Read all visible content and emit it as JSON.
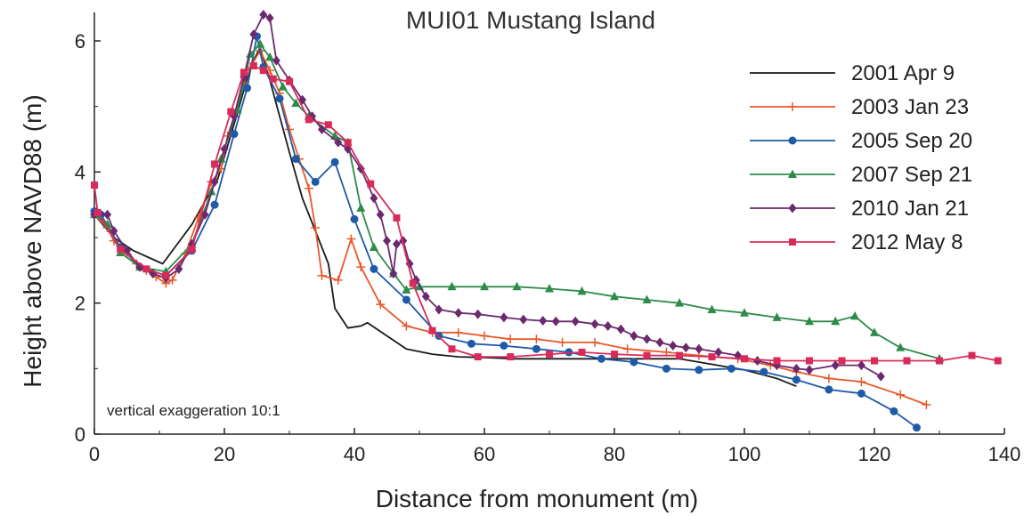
{
  "chart_data": {
    "type": "line",
    "title": "MUI01 Mustang Island",
    "xlabel": "Distance from monument (m)",
    "ylabel": "Height above NAVD88 (m)",
    "annotation": "vertical exaggeration 10:1",
    "xlim": [
      0,
      140
    ],
    "ylim": [
      0,
      6.4
    ],
    "x_ticks": [
      0,
      20,
      40,
      60,
      80,
      100,
      120,
      140
    ],
    "y_ticks": [
      0,
      2,
      4,
      6
    ],
    "grid": false,
    "legend_position": "top-right",
    "series": [
      {
        "name": "2001 Apr 9",
        "color": "#1a1a1a",
        "marker": "none",
        "points": [
          [
            0,
            3.35
          ],
          [
            3,
            3.0
          ],
          [
            6,
            2.8
          ],
          [
            10.5,
            2.6
          ],
          [
            15,
            3.2
          ],
          [
            19,
            3.9
          ],
          [
            22,
            4.9
          ],
          [
            24,
            5.6
          ],
          [
            25.5,
            5.9
          ],
          [
            27,
            5.4
          ],
          [
            30,
            4.3
          ],
          [
            32,
            3.6
          ],
          [
            34,
            3.1
          ],
          [
            36,
            2.6
          ],
          [
            37,
            1.92
          ],
          [
            39,
            1.62
          ],
          [
            41,
            1.65
          ],
          [
            42,
            1.7
          ],
          [
            45,
            1.5
          ],
          [
            48,
            1.3
          ],
          [
            52,
            1.22
          ],
          [
            56,
            1.18
          ],
          [
            60,
            1.17
          ],
          [
            65,
            1.15
          ],
          [
            70,
            1.15
          ],
          [
            80,
            1.15
          ],
          [
            90,
            1.15
          ],
          [
            100,
            0.98
          ],
          [
            105,
            0.85
          ],
          [
            108,
            0.73
          ]
        ]
      },
      {
        "name": "2003 Jan 23",
        "color": "#e8582a",
        "marker": "plus",
        "points": [
          [
            0,
            3.35
          ],
          [
            2,
            3.15
          ],
          [
            3,
            2.95
          ],
          [
            5,
            2.75
          ],
          [
            6.5,
            2.6
          ],
          [
            8,
            2.5
          ],
          [
            9.5,
            2.4
          ],
          [
            11,
            2.3
          ],
          [
            12,
            2.35
          ],
          [
            14,
            2.75
          ],
          [
            16,
            3.3
          ],
          [
            18,
            3.85
          ],
          [
            19.5,
            4.05
          ],
          [
            20.5,
            4.55
          ],
          [
            21.5,
            4.85
          ],
          [
            23,
            5.35
          ],
          [
            24,
            5.6
          ],
          [
            25.5,
            5.85
          ],
          [
            27,
            5.55
          ],
          [
            28.5,
            5.2
          ],
          [
            30,
            4.65
          ],
          [
            31.5,
            4.2
          ],
          [
            33,
            3.75
          ],
          [
            34,
            3.15
          ],
          [
            35,
            2.42
          ],
          [
            37.5,
            2.35
          ],
          [
            39.5,
            2.98
          ],
          [
            41,
            2.55
          ],
          [
            44,
            1.98
          ],
          [
            48,
            1.65
          ],
          [
            52,
            1.55
          ],
          [
            56,
            1.55
          ],
          [
            60,
            1.5
          ],
          [
            64,
            1.45
          ],
          [
            68,
            1.45
          ],
          [
            72,
            1.4
          ],
          [
            77,
            1.4
          ],
          [
            82,
            1.3
          ],
          [
            88,
            1.25
          ],
          [
            93,
            1.2
          ],
          [
            99,
            1.15
          ],
          [
            104,
            1.05
          ],
          [
            108,
            0.95
          ],
          [
            113,
            0.85
          ],
          [
            118,
            0.8
          ],
          [
            124,
            0.6
          ],
          [
            128,
            0.45
          ]
        ]
      },
      {
        "name": "2005 Sep 20",
        "color": "#1f5aa8",
        "marker": "circle",
        "points": [
          [
            0,
            3.4
          ],
          [
            1,
            3.35
          ],
          [
            4,
            2.85
          ],
          [
            7,
            2.55
          ],
          [
            11,
            2.42
          ],
          [
            15,
            2.8
          ],
          [
            18.5,
            3.5
          ],
          [
            21.5,
            4.58
          ],
          [
            23.5,
            5.28
          ],
          [
            25,
            6.07
          ],
          [
            26,
            5.6
          ],
          [
            28.5,
            5.12
          ],
          [
            31,
            4.2
          ],
          [
            34,
            3.85
          ],
          [
            37,
            4.15
          ],
          [
            40,
            3.28
          ],
          [
            43,
            2.52
          ],
          [
            48,
            2.05
          ],
          [
            53,
            1.5
          ],
          [
            58,
            1.38
          ],
          [
            63,
            1.35
          ],
          [
            68,
            1.3
          ],
          [
            73,
            1.25
          ],
          [
            78,
            1.15
          ],
          [
            83,
            1.1
          ],
          [
            88,
            1.0
          ],
          [
            93,
            0.98
          ],
          [
            98,
            1.0
          ],
          [
            103,
            0.95
          ],
          [
            108,
            0.83
          ],
          [
            113,
            0.68
          ],
          [
            118,
            0.62
          ],
          [
            123,
            0.35
          ],
          [
            126.5,
            0.1
          ]
        ]
      },
      {
        "name": "2007 Sep 21",
        "color": "#2e8b4a",
        "marker": "triangle",
        "points": [
          [
            0,
            3.35
          ],
          [
            2,
            3.2
          ],
          [
            4,
            2.77
          ],
          [
            7,
            2.55
          ],
          [
            11,
            2.48
          ],
          [
            15,
            2.9
          ],
          [
            18,
            3.7
          ],
          [
            19.5,
            4.2
          ],
          [
            22,
            4.95
          ],
          [
            24,
            5.8
          ],
          [
            25.5,
            5.95
          ],
          [
            27,
            5.75
          ],
          [
            29,
            5.3
          ],
          [
            31,
            5.05
          ],
          [
            33,
            4.85
          ],
          [
            37,
            4.55
          ],
          [
            39,
            4.45
          ],
          [
            41,
            3.45
          ],
          [
            43,
            2.85
          ],
          [
            46,
            2.45
          ],
          [
            48,
            2.2
          ],
          [
            50,
            2.25
          ],
          [
            55,
            2.25
          ],
          [
            60,
            2.25
          ],
          [
            65,
            2.25
          ],
          [
            70,
            2.22
          ],
          [
            75,
            2.18
          ],
          [
            80,
            2.1
          ],
          [
            85,
            2.05
          ],
          [
            90,
            2.0
          ],
          [
            95,
            1.9
          ],
          [
            100,
            1.85
          ],
          [
            105,
            1.78
          ],
          [
            110,
            1.72
          ],
          [
            114,
            1.72
          ],
          [
            117,
            1.8
          ],
          [
            120,
            1.55
          ],
          [
            124,
            1.32
          ],
          [
            130,
            1.15
          ]
        ]
      },
      {
        "name": "2010 Jan 21",
        "color": "#6b2a6e",
        "marker": "diamond",
        "points": [
          [
            0,
            3.35
          ],
          [
            2,
            3.35
          ],
          [
            3,
            3.1
          ],
          [
            5,
            2.8
          ],
          [
            7,
            2.55
          ],
          [
            9,
            2.45
          ],
          [
            11,
            2.38
          ],
          [
            13,
            2.52
          ],
          [
            15,
            2.9
          ],
          [
            17,
            3.35
          ],
          [
            18.5,
            3.85
          ],
          [
            20,
            4.35
          ],
          [
            21.5,
            4.85
          ],
          [
            23,
            5.45
          ],
          [
            24.5,
            6.1
          ],
          [
            26,
            6.4
          ],
          [
            27,
            6.35
          ],
          [
            28,
            5.7
          ],
          [
            30,
            5.4
          ],
          [
            32,
            5.1
          ],
          [
            33.5,
            4.85
          ],
          [
            35,
            4.65
          ],
          [
            37.5,
            4.45
          ],
          [
            39,
            4.35
          ],
          [
            41,
            4.05
          ],
          [
            43,
            3.6
          ],
          [
            44,
            3.35
          ],
          [
            45,
            2.95
          ],
          [
            46,
            2.45
          ],
          [
            46.5,
            2.9
          ],
          [
            47.5,
            2.95
          ],
          [
            48.5,
            2.6
          ],
          [
            49.5,
            2.35
          ],
          [
            51,
            2.1
          ],
          [
            53,
            1.9
          ],
          [
            56,
            1.85
          ],
          [
            59,
            1.83
          ],
          [
            63,
            1.78
          ],
          [
            66,
            1.75
          ],
          [
            69,
            1.73
          ],
          [
            71,
            1.72
          ],
          [
            74,
            1.72
          ],
          [
            77,
            1.68
          ],
          [
            79,
            1.65
          ],
          [
            81,
            1.6
          ],
          [
            83,
            1.5
          ],
          [
            85,
            1.45
          ],
          [
            87,
            1.4
          ],
          [
            89,
            1.35
          ],
          [
            91,
            1.32
          ],
          [
            93,
            1.3
          ],
          [
            96,
            1.25
          ],
          [
            99,
            1.2
          ],
          [
            102,
            1.12
          ],
          [
            105,
            1.05
          ],
          [
            108,
            1.0
          ],
          [
            110,
            0.98
          ],
          [
            114,
            1.05
          ],
          [
            118,
            1.05
          ],
          [
            121,
            0.88
          ]
        ]
      },
      {
        "name": "2012 May 8",
        "color": "#d92b5a",
        "marker": "square",
        "points": [
          [
            0,
            3.8
          ],
          [
            0.5,
            3.38
          ],
          [
            4,
            2.82
          ],
          [
            8,
            2.52
          ],
          [
            11,
            2.42
          ],
          [
            15,
            2.82
          ],
          [
            18.5,
            4.12
          ],
          [
            21,
            4.92
          ],
          [
            23,
            5.52
          ],
          [
            24.5,
            5.62
          ],
          [
            26,
            5.55
          ],
          [
            27.5,
            5.42
          ],
          [
            30,
            5.38
          ],
          [
            33,
            4.8
          ],
          [
            36,
            4.72
          ],
          [
            39,
            4.45
          ],
          [
            42.5,
            3.82
          ],
          [
            46.5,
            3.3
          ],
          [
            49,
            2.3
          ],
          [
            52,
            1.58
          ],
          [
            55,
            1.3
          ],
          [
            59,
            1.18
          ],
          [
            64,
            1.18
          ],
          [
            70,
            1.22
          ],
          [
            75,
            1.25
          ],
          [
            80,
            1.22
          ],
          [
            85,
            1.2
          ],
          [
            90,
            1.2
          ],
          [
            95,
            1.18
          ],
          [
            100,
            1.15
          ],
          [
            105,
            1.12
          ],
          [
            110,
            1.12
          ],
          [
            115,
            1.12
          ],
          [
            120,
            1.12
          ],
          [
            125,
            1.12
          ],
          [
            130,
            1.12
          ],
          [
            135,
            1.2
          ],
          [
            139,
            1.12
          ]
        ]
      }
    ]
  }
}
